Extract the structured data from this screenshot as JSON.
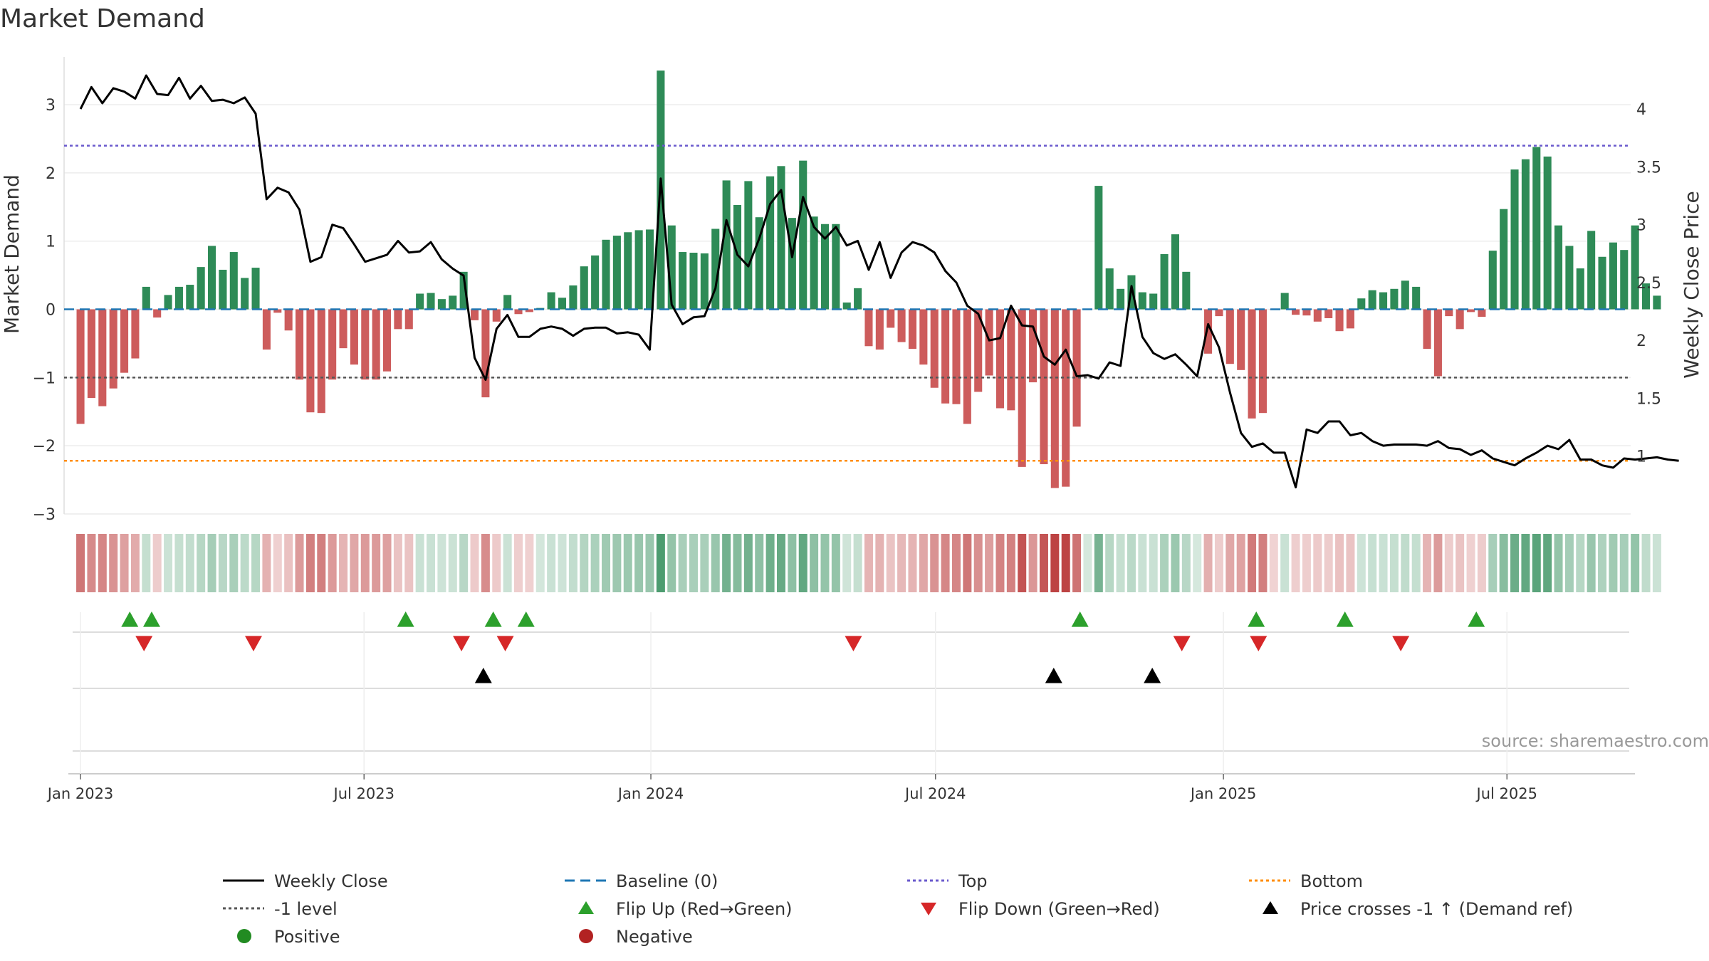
{
  "chart_data": {
    "type": "bar",
    "title": "Market Demand",
    "ylabel": "Market Demand",
    "y2label": "Weekly Close Price",
    "ylim": [
      -3,
      3.7
    ],
    "y2lim": [
      0.5,
      4.45
    ],
    "yticks": [
      3,
      2,
      1,
      0,
      -1,
      -2,
      -3
    ],
    "ytick_labels": [
      "3",
      "2",
      "1",
      "0",
      "−1",
      "−2",
      "−3"
    ],
    "y2ticks": [
      4,
      3.5,
      3,
      2.5,
      2,
      1.5,
      1
    ],
    "y2tick_labels": [
      "4",
      "3.5",
      "3",
      "2.5",
      "2",
      "1.5",
      "1"
    ],
    "x_range_weeks": [
      -1.5,
      141.6
    ],
    "xticks": [
      {
        "label": "Jan 2023",
        "week": 0
      },
      {
        "label": "Jul 2023",
        "week": 25.9
      },
      {
        "label": "Jan 2024",
        "week": 52.1
      },
      {
        "label": "Jul 2024",
        "week": 78.1
      },
      {
        "label": "Jan 2025",
        "week": 104.4
      },
      {
        "label": "Jul 2025",
        "week": 130.3
      }
    ],
    "reference_lines": {
      "top": 2.4,
      "bottom": -2.22,
      "minus_one": -1,
      "baseline": 0
    },
    "colors": {
      "positive": "#2e8b57",
      "negative": "#cd5c5c",
      "price": "#000000",
      "top": "#6a5acd",
      "bottom": "#ff8c00",
      "level": "#555555",
      "baseline": "#1f77b4",
      "flip_up": "#2ca02c",
      "flip_down": "#d62728",
      "cross": "#000000",
      "legend_positive": "#228b22",
      "legend_negative": "#b22222",
      "heat_green": "#2e8b57",
      "heat_red": "#b22222"
    },
    "demand": [
      -1.68,
      -1.3,
      -1.42,
      -1.16,
      -0.93,
      -0.72,
      0.33,
      -0.12,
      0.21,
      0.33,
      0.36,
      0.62,
      0.93,
      0.58,
      0.84,
      0.46,
      0.61,
      -0.59,
      -0.05,
      -0.31,
      -1.03,
      -1.51,
      -1.52,
      -1.03,
      -0.57,
      -0.81,
      -1.03,
      -1.03,
      -0.91,
      -0.29,
      -0.29,
      0.23,
      0.24,
      0.15,
      0.2,
      0.55,
      -0.16,
      -1.29,
      -0.18,
      0.21,
      -0.07,
      -0.04,
      0.02,
      0.25,
      0.17,
      0.35,
      0.63,
      0.79,
      1.02,
      1.08,
      1.13,
      1.16,
      1.17,
      3.5,
      1.23,
      0.84,
      0.83,
      0.82,
      1.18,
      1.89,
      1.53,
      1.88,
      1.35,
      1.95,
      2.1,
      1.34,
      2.18,
      1.36,
      1.25,
      1.25,
      0.1,
      0.31,
      -0.54,
      -0.59,
      -0.27,
      -0.48,
      -0.58,
      -0.81,
      -1.15,
      -1.38,
      -1.39,
      -1.68,
      -1.21,
      -0.97,
      -1.45,
      -1.48,
      -2.31,
      -1.07,
      -2.27,
      -2.62,
      -2.6,
      -1.72,
      0.01,
      1.81,
      0.6,
      0.3,
      0.5,
      0.25,
      0.23,
      0.81,
      1.1,
      0.55,
      0.0,
      -0.65,
      -0.1,
      -0.8,
      -0.89,
      -1.6,
      -1.52,
      -0.01,
      0.24,
      -0.08,
      -0.09,
      -0.18,
      -0.13,
      -0.32,
      -0.28,
      0.16,
      0.28,
      0.25,
      0.3,
      0.42,
      0.33,
      -0.58,
      -0.98,
      -0.1,
      -0.29,
      -0.04,
      -0.11,
      0.86,
      1.47,
      2.05,
      2.2,
      2.38,
      2.24,
      1.23,
      0.93,
      0.6,
      1.15,
      0.77,
      0.98,
      0.87,
      1.23,
      0.38,
      0.2
    ],
    "price": [
      4.0,
      4.19,
      4.05,
      4.18,
      4.15,
      4.09,
      4.29,
      4.13,
      4.12,
      4.27,
      4.09,
      4.2,
      4.07,
      4.08,
      4.05,
      4.1,
      3.96,
      3.22,
      3.32,
      3.28,
      3.13,
      2.68,
      2.72,
      3.0,
      2.97,
      2.83,
      2.68,
      2.71,
      2.74,
      2.86,
      2.76,
      2.77,
      2.85,
      2.7,
      2.62,
      2.56,
      1.85,
      1.66,
      2.1,
      2.22,
      2.03,
      2.03,
      2.1,
      2.12,
      2.1,
      2.04,
      2.1,
      2.11,
      2.11,
      2.06,
      2.07,
      2.05,
      1.92,
      3.4,
      2.31,
      2.14,
      2.2,
      2.21,
      2.45,
      3.04,
      2.74,
      2.64,
      2.88,
      3.18,
      3.3,
      2.72,
      3.24,
      2.98,
      2.88,
      2.98,
      2.82,
      2.86,
      2.61,
      2.85,
      2.54,
      2.76,
      2.85,
      2.82,
      2.76,
      2.6,
      2.5,
      2.3,
      2.23,
      2.0,
      2.02,
      2.3,
      2.13,
      2.12,
      1.86,
      1.79,
      1.92,
      1.69,
      1.7,
      1.67,
      1.81,
      1.78,
      2.47,
      2.03,
      1.89,
      1.84,
      1.88,
      1.79,
      1.69,
      2.14,
      1.94,
      1.55,
      1.2,
      1.08,
      1.11,
      1.03,
      1.03,
      0.73,
      1.23,
      1.2,
      1.3,
      1.3,
      1.18,
      1.2,
      1.13,
      1.09,
      1.1,
      1.1,
      1.1,
      1.09,
      1.13,
      1.07,
      1.06,
      1.01,
      1.05,
      0.98,
      0.95,
      0.92,
      0.98,
      1.03,
      1.09,
      1.06,
      1.14,
      0.97,
      0.97,
      0.92,
      0.9,
      0.98,
      0.97,
      0.98,
      0.99,
      0.97,
      0.96
    ],
    "flip_up_weeks": [
      4.5,
      6.5,
      29.7,
      37.7,
      40.7,
      91.3,
      107.4,
      115.5,
      127.5
    ],
    "flip_down_weeks": [
      5.8,
      15.8,
      34.8,
      38.8,
      70.6,
      100.6,
      107.6,
      120.6
    ],
    "cross_weeks": [
      36.8,
      88.9,
      97.9
    ],
    "legend": [
      {
        "label": "Weekly Close",
        "icon": "solid-line"
      },
      {
        "label": "Baseline (0)",
        "icon": "dashed-line"
      },
      {
        "label": "Top",
        "icon": "dotted-line"
      },
      {
        "label": "Bottom",
        "icon": "dotted-line"
      },
      {
        "label": "-1 level",
        "icon": "dotted-line"
      },
      {
        "label": "Flip Up (Red→Green)",
        "icon": "triangle-up"
      },
      {
        "label": "Flip Down (Green→Red)",
        "icon": "triangle-down"
      },
      {
        "label": "Price crosses -1 ↑ (Demand ref)",
        "icon": "triangle-up"
      },
      {
        "label": "Positive",
        "icon": "circle"
      },
      {
        "label": "Negative",
        "icon": "circle"
      }
    ],
    "source": "source: sharemaestro.com"
  }
}
